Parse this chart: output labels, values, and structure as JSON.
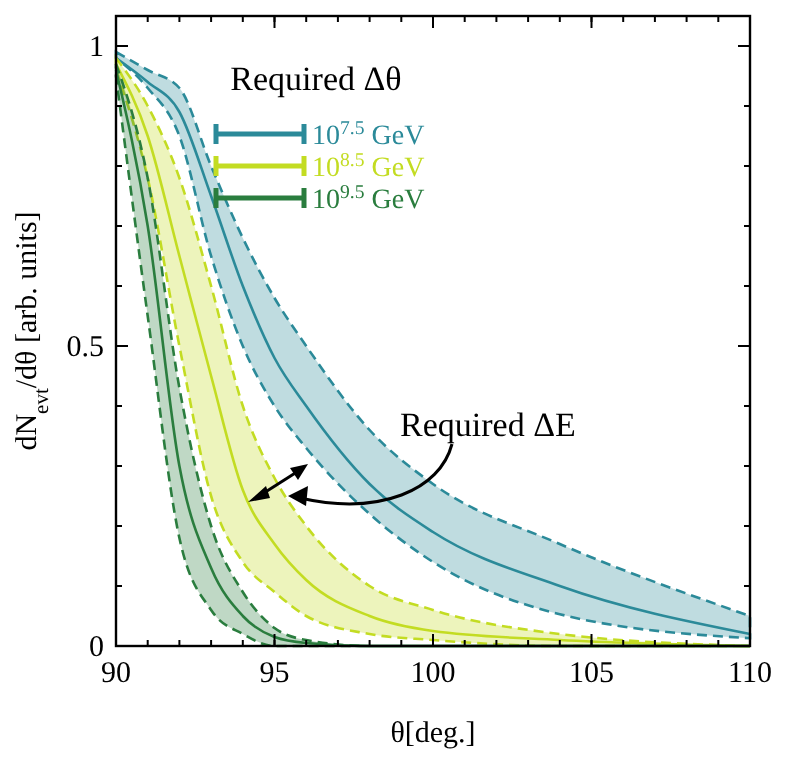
{
  "chart_data": {
    "type": "line",
    "xlabel": "θ[deg.]",
    "ylabel": "dN$_{evt}$/dθ [arb. units]",
    "legend_title": "Required Δθ",
    "legend": "top",
    "xlim": [
      90,
      110
    ],
    "ylim": [
      0,
      1.05
    ],
    "xticks": [
      90,
      95,
      100,
      105,
      110
    ],
    "yticks": [
      0,
      0.5,
      1
    ],
    "line_style": "solid",
    "marker": "none",
    "annotations": [
      "Required ΔE"
    ],
    "x": [
      90,
      91,
      92,
      93,
      94,
      95,
      96,
      98,
      100,
      104,
      110
    ],
    "series": [
      {
        "name": "10$^{7.5}$ GeV",
        "color": "#2b8a99",
        "values": [
          0.98,
          0.94,
          0.89,
          0.75,
          0.6,
          0.48,
          0.4,
          0.27,
          0.19,
          0.1,
          0.02
        ],
        "lower": [
          0.98,
          0.93,
          0.85,
          0.65,
          0.5,
          0.4,
          0.33,
          0.22,
          0.14,
          0.053,
          0.013
        ],
        "upper": [
          0.99,
          0.96,
          0.93,
          0.8,
          0.68,
          0.58,
          0.5,
          0.36,
          0.27,
          0.17,
          0.05
        ]
      },
      {
        "name": "10$^{8.5}$ GeV",
        "color": "#c3dc22",
        "values": [
          0.97,
          0.85,
          0.65,
          0.45,
          0.26,
          0.17,
          0.11,
          0.05,
          0.025,
          0.01,
          0
        ],
        "lower": [
          0.96,
          0.78,
          0.5,
          0.25,
          0.14,
          0.09,
          0.05,
          0.02,
          0.01,
          0,
          0
        ],
        "upper": [
          0.98,
          0.9,
          0.78,
          0.6,
          0.4,
          0.28,
          0.2,
          0.1,
          0.06,
          0.02,
          0
        ]
      },
      {
        "name": "10$^{9.5}$ GeV",
        "color": "#2a7d3e",
        "values": [
          0.96,
          0.7,
          0.3,
          0.13,
          0.05,
          0.015,
          0.005,
          0,
          0,
          0,
          0
        ],
        "lower": [
          0.95,
          0.55,
          0.18,
          0.06,
          0.02,
          0,
          0,
          0,
          0,
          0,
          0
        ],
        "upper": [
          0.97,
          0.78,
          0.43,
          0.2,
          0.09,
          0.03,
          0.01,
          0,
          0,
          0,
          0
        ]
      }
    ]
  }
}
